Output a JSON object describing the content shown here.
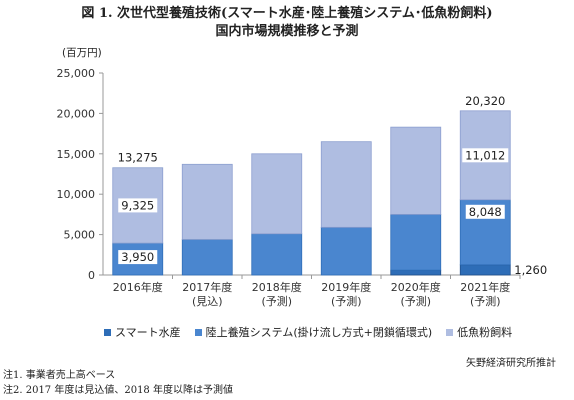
{
  "title_line1": "図 1. 次世代型養殖技術(スマート水産･陸上養殖システム･低魚粉飼料)",
  "title_line2": "国内市場規模推移と予測",
  "unit_label": "(百万円)",
  "source": "矢野経済研究所推計",
  "notes": [
    "注1. 事業者売上高ベース",
    "注2. 2017 年度は見込値、2018 年度以降は予測値"
  ],
  "colors": {
    "smart": "#2e6db7",
    "land": "#4a86cf",
    "feed": "#afbde1",
    "axis": "#999999"
  },
  "chart_data": {
    "type": "bar",
    "stacked": true,
    "categories": [
      [
        "2016年度",
        ""
      ],
      [
        "2017年度",
        "(見込)"
      ],
      [
        "2018年度",
        "(予測)"
      ],
      [
        "2019年度",
        "(予測)"
      ],
      [
        "2020年度",
        "(予測)"
      ],
      [
        "2021年度",
        "(予測)"
      ]
    ],
    "series": [
      {
        "name": "スマート水産",
        "values": [
          0,
          0,
          0,
          0,
          600,
          1260
        ]
      },
      {
        "name": "陸上養殖システム(掛け流し方式+閉鎖循環式)",
        "values": [
          3950,
          4400,
          5100,
          5900,
          6900,
          8048
        ]
      },
      {
        "name": "低魚粉飼料",
        "values": [
          9325,
          9300,
          9900,
          10600,
          10800,
          11012
        ]
      }
    ],
    "data_labels": [
      {
        "category": 0,
        "text": "13,275",
        "kind": "total"
      },
      {
        "category": 0,
        "text": "9,325",
        "kind": "feed"
      },
      {
        "category": 0,
        "text": "3,950",
        "kind": "land"
      },
      {
        "category": 5,
        "text": "20,320",
        "kind": "total"
      },
      {
        "category": 5,
        "text": "11,012",
        "kind": "feed"
      },
      {
        "category": 5,
        "text": "8,048",
        "kind": "land"
      },
      {
        "category": 5,
        "text": "1,260",
        "kind": "smart"
      }
    ],
    "ylim": [
      0,
      25000
    ],
    "yticks": [
      0,
      5000,
      10000,
      15000,
      20000,
      25000
    ],
    "ytick_labels": [
      "0",
      "5,000",
      "10,000",
      "15,000",
      "20,000",
      "25,000"
    ],
    "grid": false,
    "legend_position": "bottom"
  }
}
